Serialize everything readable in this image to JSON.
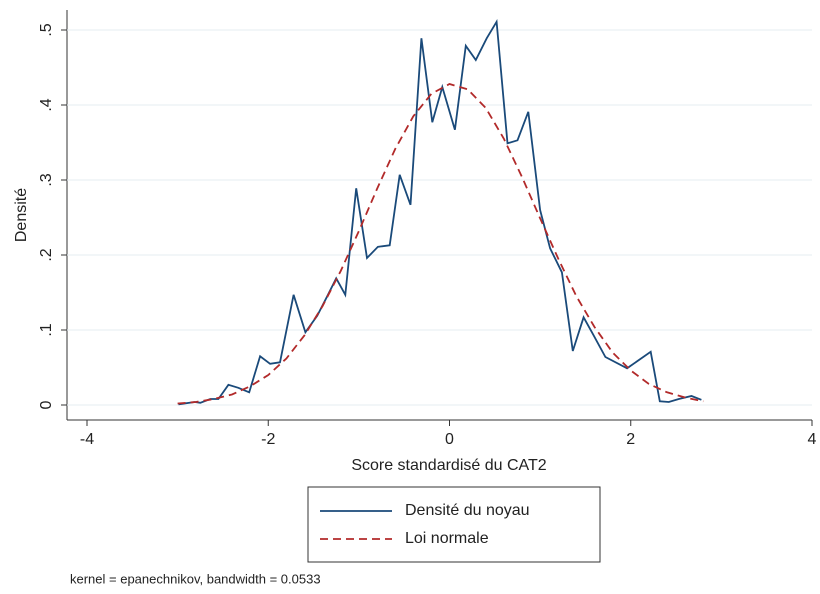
{
  "chart_data": {
    "type": "line",
    "xlabel": "Score standardisé du CAT2",
    "ylabel": "Densité",
    "note": "kernel = epanechnikov, bandwidth = 0.0533",
    "xlim": [
      -4,
      4
    ],
    "xticks": [
      -4,
      -2,
      0,
      2,
      4
    ],
    "ylim": [
      0,
      0.5
    ],
    "yticks": [
      0,
      {
        "value": 0.1,
        "label": ".1"
      },
      {
        "value": 0.2,
        "label": ".2"
      },
      {
        "value": 0.3,
        "label": ".3"
      },
      {
        "value": 0.4,
        "label": ".4"
      },
      {
        "value": 0.5,
        "label": ".5"
      }
    ],
    "grid": true,
    "legend": "bottom",
    "series": [
      {
        "name": "Densité du noyau",
        "color": "#1a4a7a",
        "dash": "solid",
        "x": [
          -2.99,
          -2.81,
          -2.75,
          -2.64,
          -2.55,
          -2.44,
          -2.33,
          -2.21,
          -2.09,
          -1.98,
          -1.87,
          -1.72,
          -1.59,
          -1.46,
          -1.35,
          -1.25,
          -1.15,
          -1.03,
          -0.91,
          -0.79,
          -0.66,
          -0.55,
          -0.43,
          -0.31,
          -0.19,
          -0.08,
          0.06,
          0.18,
          0.29,
          0.41,
          0.52,
          0.64,
          0.75,
          0.87,
          1.0,
          1.11,
          1.24,
          1.36,
          1.48,
          1.59,
          1.72,
          1.96,
          2.22,
          2.32,
          2.42,
          2.53,
          2.67,
          2.78
        ],
        "values": [
          0.001,
          0.004,
          0.003,
          0.008,
          0.008,
          0.027,
          0.023,
          0.017,
          0.065,
          0.055,
          0.057,
          0.147,
          0.097,
          0.119,
          0.145,
          0.169,
          0.147,
          0.289,
          0.196,
          0.211,
          0.213,
          0.307,
          0.267,
          0.489,
          0.377,
          0.424,
          0.367,
          0.479,
          0.46,
          0.489,
          0.511,
          0.349,
          0.353,
          0.391,
          0.26,
          0.209,
          0.177,
          0.072,
          0.117,
          0.093,
          0.064,
          0.049,
          0.071,
          0.005,
          0.004,
          0.008,
          0.012,
          0.007
        ]
      },
      {
        "name": "Loi normale",
        "color": "#b22a2a",
        "dash": "dashed",
        "x": [
          -3,
          -2.8,
          -2.6,
          -2.4,
          -2.2,
          -2,
          -1.8,
          -1.6,
          -1.4,
          -1.2,
          -1,
          -0.8,
          -0.6,
          -0.4,
          -0.2,
          0,
          0.2,
          0.4,
          0.6,
          0.8,
          1,
          1.2,
          1.4,
          1.6,
          1.8,
          2,
          2.2,
          2.4,
          2.6,
          2.8
        ],
        "values": [
          0.002,
          0.004,
          0.008,
          0.014,
          0.025,
          0.04,
          0.062,
          0.093,
          0.132,
          0.179,
          0.232,
          0.288,
          0.341,
          0.385,
          0.415,
          0.428,
          0.421,
          0.396,
          0.355,
          0.304,
          0.249,
          0.195,
          0.145,
          0.104,
          0.07,
          0.046,
          0.028,
          0.017,
          0.01,
          0.005
        ]
      }
    ]
  }
}
